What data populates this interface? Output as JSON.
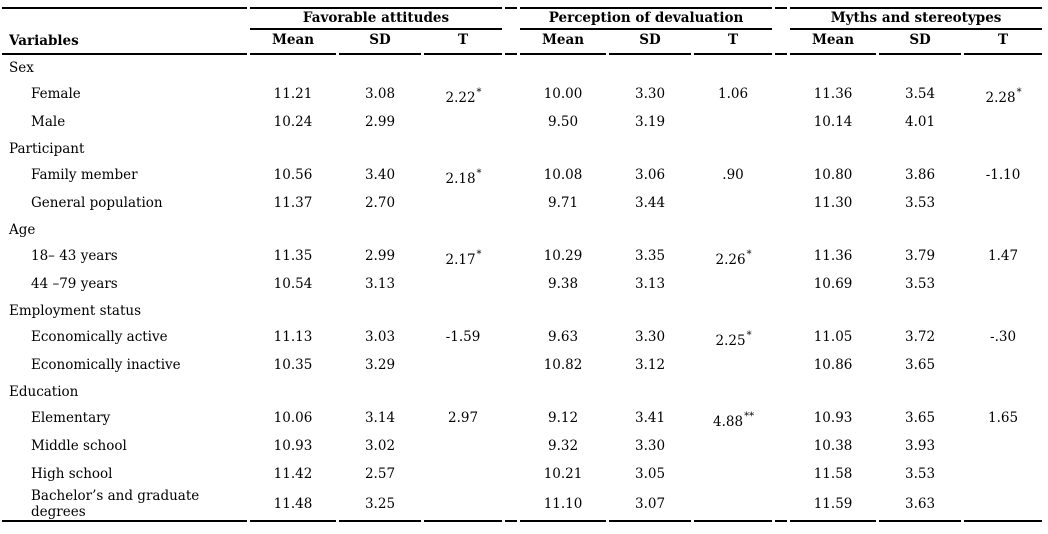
{
  "table": {
    "variables_header": "Variables",
    "groups": [
      {
        "label": "Favorable attitudes"
      },
      {
        "label": "Perception of devaluation"
      },
      {
        "label": "Myths and stereotypes"
      }
    ],
    "sub_headers": [
      "Mean",
      "SD",
      "T"
    ],
    "rows": [
      {
        "type": "section",
        "label": "Sex"
      },
      {
        "type": "data",
        "label": "Female",
        "cells": [
          "11.21",
          "3.08",
          "2.22*",
          "10.00",
          "3.30",
          "1.06",
          "11.36",
          "3.54",
          "2.28*"
        ]
      },
      {
        "type": "data",
        "label": "Male",
        "cells": [
          "10.24",
          "2.99",
          "",
          "9.50",
          "3.19",
          "",
          "10.14",
          "4.01",
          ""
        ]
      },
      {
        "type": "section",
        "label": "Participant"
      },
      {
        "type": "data",
        "label": "Family member",
        "cells": [
          "10.56",
          "3.40",
          "2.18*",
          "10.08",
          "3.06",
          ".90",
          "10.80",
          "3.86",
          "-1.10"
        ]
      },
      {
        "type": "data",
        "label": "General population",
        "cells": [
          "11.37",
          "2.70",
          "",
          "9.71",
          "3.44",
          "",
          "11.30",
          "3.53",
          ""
        ]
      },
      {
        "type": "section",
        "label": "Age"
      },
      {
        "type": "data",
        "label": "18– 43 years",
        "cells": [
          "11.35",
          "2.99",
          "2.17*",
          "10.29",
          "3.35",
          "2.26*",
          "11.36",
          "3.79",
          "1.47"
        ]
      },
      {
        "type": "data",
        "label": "44 –79 years",
        "cells": [
          "10.54",
          "3.13",
          "",
          "9.38",
          "3.13",
          "",
          "10.69",
          "3.53",
          ""
        ]
      },
      {
        "type": "section",
        "label": "Employment status"
      },
      {
        "type": "data",
        "label": "Economically active",
        "cells": [
          "11.13",
          "3.03",
          "-1.59",
          "9.63",
          "3.30",
          "2.25*",
          "11.05",
          "3.72",
          "-.30"
        ]
      },
      {
        "type": "data",
        "label": "Economically inactive",
        "cells": [
          "10.35",
          "3.29",
          "",
          "10.82",
          "3.12",
          "",
          "10.86",
          "3.65",
          ""
        ]
      },
      {
        "type": "section",
        "label": "Education"
      },
      {
        "type": "data",
        "label": "Elementary",
        "cells": [
          "10.06",
          "3.14",
          "2.97",
          "9.12",
          "3.41",
          "4.88**",
          "10.93",
          "3.65",
          "1.65"
        ]
      },
      {
        "type": "data",
        "label": "Middle school",
        "cells": [
          "10.93",
          "3.02",
          "",
          "9.32",
          "3.30",
          "",
          "10.38",
          "3.93",
          ""
        ]
      },
      {
        "type": "data",
        "label": "High school",
        "cells": [
          "11.42",
          "2.57",
          "",
          "10.21",
          "3.05",
          "",
          "11.58",
          "3.53",
          ""
        ]
      },
      {
        "type": "data",
        "label": "Bachelor’s and graduate degrees",
        "cells": [
          "11.48",
          "3.25",
          "",
          "11.10",
          "3.07",
          "",
          "11.59",
          "3.63",
          ""
        ]
      }
    ]
  }
}
